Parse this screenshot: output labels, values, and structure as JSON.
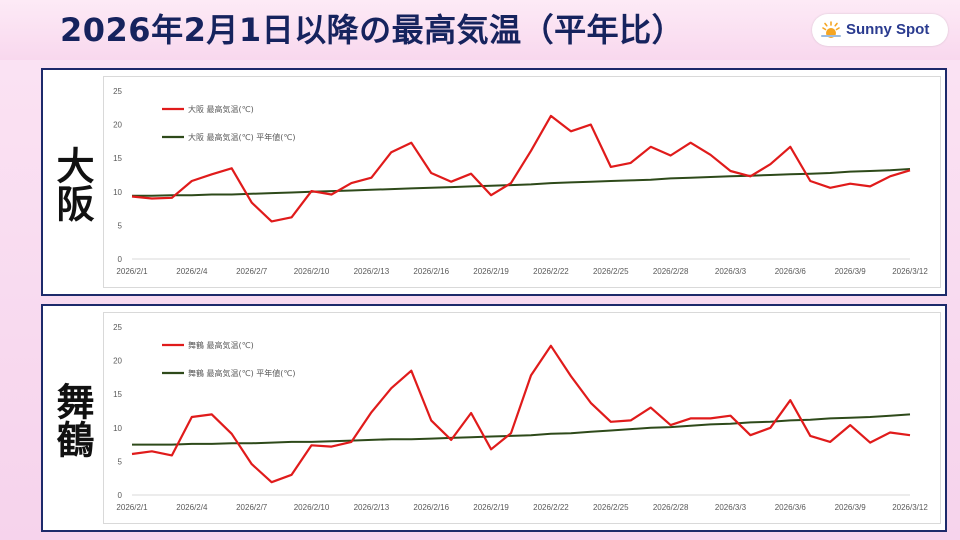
{
  "header": {
    "title": "2026年2月1日以降の最高気温（平年比）",
    "logo_text": "Sunny Spot",
    "logo_icon": "sun-icon"
  },
  "colors": {
    "title": "#16235e",
    "series_actual": "#e01b1b",
    "series_normal": "#2e4a1a",
    "panel_border": "#1d2a6b"
  },
  "chart_data": [
    {
      "type": "line",
      "panel_label": "大阪",
      "ylim": [
        0,
        25
      ],
      "yticks": [
        0,
        5,
        10,
        15,
        20,
        25
      ],
      "x": [
        "2026/2/1",
        "2026/2/2",
        "2026/2/3",
        "2026/2/4",
        "2026/2/5",
        "2026/2/6",
        "2026/2/7",
        "2026/2/8",
        "2026/2/9",
        "2026/2/10",
        "2026/2/11",
        "2026/2/12",
        "2026/2/13",
        "2026/2/14",
        "2026/2/15",
        "2026/2/16",
        "2026/2/17",
        "2026/2/18",
        "2026/2/19",
        "2026/2/20",
        "2026/2/21",
        "2026/2/22",
        "2026/2/23",
        "2026/2/24",
        "2026/2/25",
        "2026/2/26",
        "2026/2/27",
        "2026/2/28",
        "2026/3/1",
        "2026/3/2",
        "2026/3/3",
        "2026/3/4",
        "2026/3/5",
        "2026/3/6",
        "2026/3/7",
        "2026/3/8",
        "2026/3/9",
        "2026/3/10",
        "2026/3/11",
        "2026/3/12"
      ],
      "xtick_labels": [
        "2026/2/1",
        "2026/2/4",
        "2026/2/7",
        "2026/2/10",
        "2026/2/13",
        "2026/2/16",
        "2026/2/19",
        "2026/2/22",
        "2026/2/25",
        "2026/2/28",
        "2026/3/3",
        "2026/3/6",
        "2026/3/9",
        "2026/3/12"
      ],
      "legend_position": "top-left",
      "grid": false,
      "series": [
        {
          "name": "大阪 最高気温(℃)",
          "color": "#e01b1b",
          "values": [
            9.3,
            9.0,
            9.1,
            11.6,
            12.6,
            13.5,
            8.4,
            5.6,
            6.2,
            10.1,
            9.6,
            11.3,
            12.1,
            15.9,
            17.3,
            12.8,
            11.5,
            12.7,
            9.5,
            11.3,
            16.1,
            21.3,
            19.0,
            20.0,
            13.7,
            14.3,
            16.7,
            15.4,
            17.3,
            15.5,
            13.1,
            12.3,
            14.1,
            16.7,
            11.6,
            10.6,
            11.2,
            10.8,
            12.3,
            13.2
          ]
        },
        {
          "name": "大阪 最高気温(℃) 平年値(℃)",
          "color": "#2e4a1a",
          "values": [
            9.4,
            9.4,
            9.5,
            9.5,
            9.6,
            9.6,
            9.7,
            9.8,
            9.9,
            10.0,
            10.1,
            10.2,
            10.3,
            10.4,
            10.5,
            10.6,
            10.7,
            10.8,
            10.9,
            11.0,
            11.1,
            11.3,
            11.4,
            11.5,
            11.6,
            11.7,
            11.8,
            12.0,
            12.1,
            12.2,
            12.3,
            12.4,
            12.5,
            12.6,
            12.7,
            12.8,
            13.0,
            13.1,
            13.2,
            13.4
          ]
        }
      ]
    },
    {
      "type": "line",
      "panel_label": "舞鶴",
      "ylim": [
        0,
        25
      ],
      "yticks": [
        0,
        5,
        10,
        15,
        20,
        25
      ],
      "x": [
        "2026/2/1",
        "2026/2/2",
        "2026/2/3",
        "2026/2/4",
        "2026/2/5",
        "2026/2/6",
        "2026/2/7",
        "2026/2/8",
        "2026/2/9",
        "2026/2/10",
        "2026/2/11",
        "2026/2/12",
        "2026/2/13",
        "2026/2/14",
        "2026/2/15",
        "2026/2/16",
        "2026/2/17",
        "2026/2/18",
        "2026/2/19",
        "2026/2/20",
        "2026/2/21",
        "2026/2/22",
        "2026/2/23",
        "2026/2/24",
        "2026/2/25",
        "2026/2/26",
        "2026/2/27",
        "2026/2/28",
        "2026/3/1",
        "2026/3/2",
        "2026/3/3",
        "2026/3/4",
        "2026/3/5",
        "2026/3/6",
        "2026/3/7",
        "2026/3/8",
        "2026/3/9",
        "2026/3/10",
        "2026/3/11",
        "2026/3/12"
      ],
      "xtick_labels": [
        "2026/2/1",
        "2026/2/4",
        "2026/2/7",
        "2026/2/10",
        "2026/2/13",
        "2026/2/16",
        "2026/2/19",
        "2026/2/22",
        "2026/2/25",
        "2026/2/28",
        "2026/3/3",
        "2026/3/6",
        "2026/3/9",
        "2026/3/12"
      ],
      "legend_position": "top-left",
      "grid": false,
      "series": [
        {
          "name": "舞鶴 最高気温(℃)",
          "color": "#e01b1b",
          "values": [
            6.1,
            6.5,
            5.9,
            11.6,
            12.0,
            9.1,
            4.6,
            1.9,
            3.0,
            7.4,
            7.2,
            7.9,
            12.3,
            15.9,
            18.5,
            11.1,
            8.2,
            12.2,
            6.8,
            9.2,
            17.8,
            22.2,
            17.7,
            13.7,
            10.9,
            11.1,
            13.0,
            10.4,
            11.4,
            11.4,
            11.8,
            8.9,
            10.0,
            14.1,
            8.8,
            7.9,
            10.4,
            7.8,
            9.3,
            8.9
          ]
        },
        {
          "name": "舞鶴 最高気温(℃) 平年値(℃)",
          "color": "#2e4a1a",
          "values": [
            7.5,
            7.5,
            7.5,
            7.6,
            7.6,
            7.7,
            7.7,
            7.8,
            7.9,
            7.9,
            8.0,
            8.1,
            8.2,
            8.3,
            8.3,
            8.4,
            8.5,
            8.6,
            8.7,
            8.8,
            8.9,
            9.1,
            9.2,
            9.4,
            9.6,
            9.8,
            10.0,
            10.1,
            10.3,
            10.5,
            10.6,
            10.8,
            10.9,
            11.1,
            11.2,
            11.4,
            11.5,
            11.6,
            11.8,
            12.0
          ]
        }
      ]
    }
  ]
}
